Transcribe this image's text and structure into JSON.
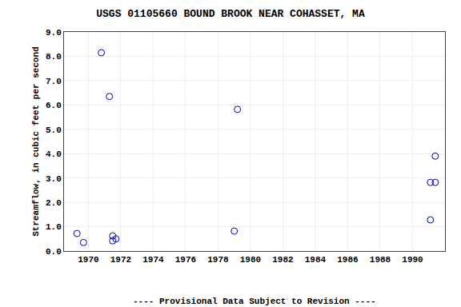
{
  "chart_data": {
    "type": "scatter",
    "title": "USGS 01105660 BOUND BROOK NEAR COHASSET, MA",
    "ylabel": "Streamflow, in cubic feet per second",
    "annotation": "---- Provisional Data Subject to Revision ----",
    "x": [
      1969.3,
      1969.7,
      1970.8,
      1971.3,
      1971.5,
      1971.7,
      1971.5,
      1979.2,
      1979.0,
      1991.4,
      1991.4,
      1991.1,
      1991.1
    ],
    "values": [
      0.72,
      0.35,
      8.15,
      6.35,
      0.62,
      0.5,
      0.42,
      5.82,
      0.82,
      3.9,
      2.82,
      2.82,
      1.28
    ],
    "color": "#0000cc",
    "marker": "circle-open",
    "xlim": [
      1968.5,
      1992.0
    ],
    "ylim": [
      0.0,
      9.0
    ],
    "xticks": [
      1970,
      1972,
      1974,
      1976,
      1978,
      1980,
      1982,
      1984,
      1986,
      1988,
      1990
    ],
    "yticks": [
      {
        "value": 0.0,
        "label": "0.0"
      },
      {
        "value": 1.0,
        "label": "1.0"
      },
      {
        "value": 2.0,
        "label": "2.0"
      },
      {
        "value": 3.0,
        "label": "3.0"
      },
      {
        "value": 4.0,
        "label": "4.0"
      },
      {
        "value": 5.0,
        "label": "5.0"
      },
      {
        "value": 6.0,
        "label": "6.0"
      },
      {
        "value": 7.0,
        "label": "7.0"
      },
      {
        "value": 8.0,
        "label": "8.0"
      },
      {
        "value": 9.0,
        "label": "9.0"
      }
    ],
    "grid": true
  }
}
